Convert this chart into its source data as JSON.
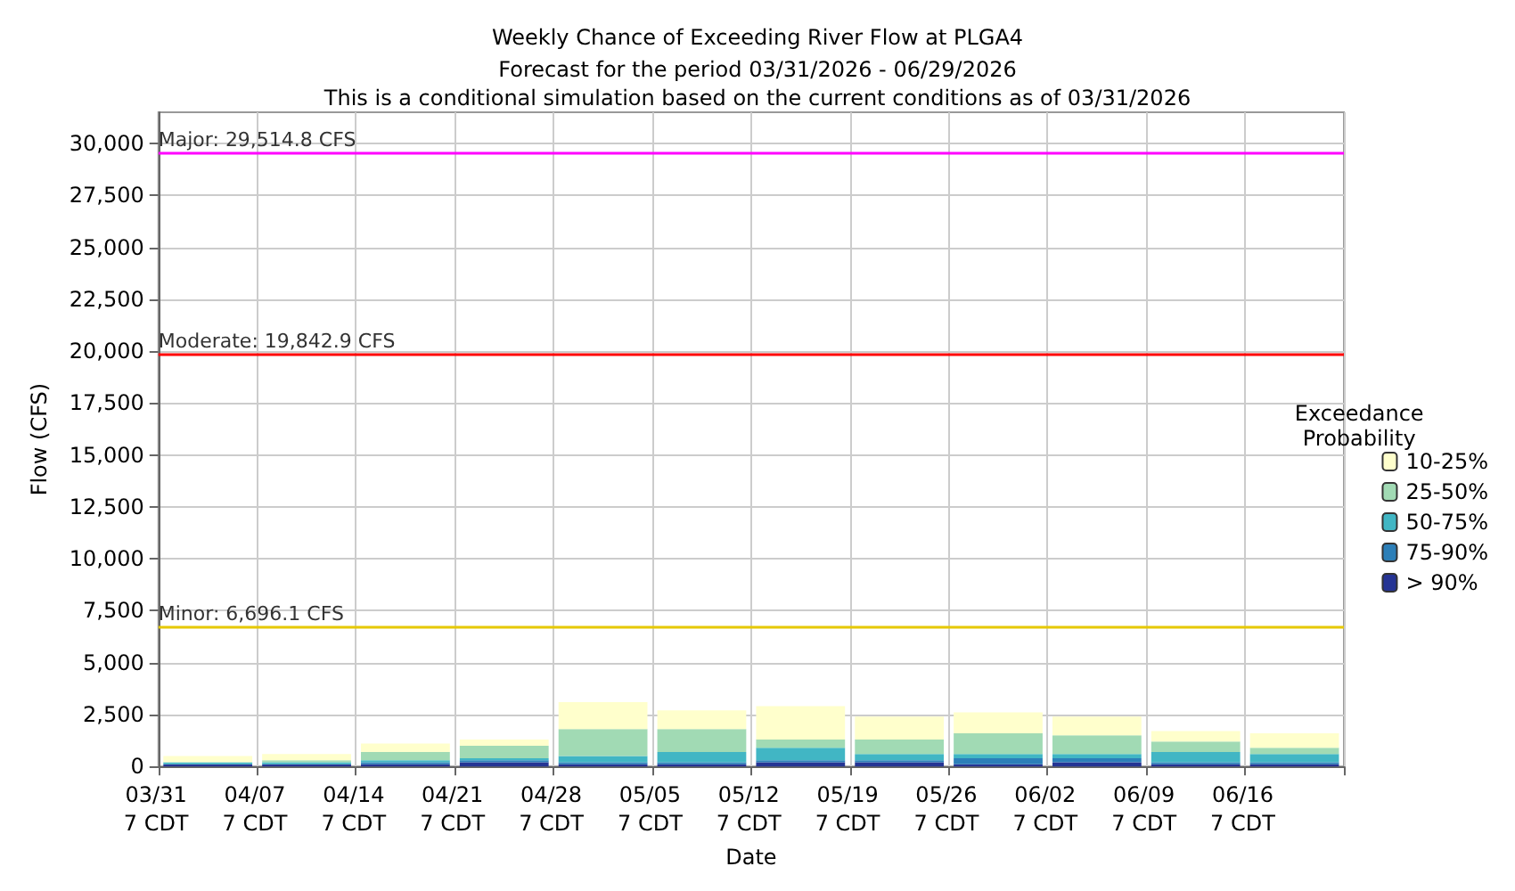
{
  "chart_data": {
    "type": "bar",
    "title": "Weekly Chance of Exceeding River Flow at PLGA4",
    "subtitle": "Forecast for the period 03/31/2026 - 06/29/2026\nThis is a conditional simulation based on the current conditions as of 03/31/2026",
    "xlabel": "Date",
    "ylabel": "Flow (CFS)",
    "legend_title": "Exceedance\nProbability",
    "categories": [
      "03/31\n7 CDT",
      "04/07\n7 CDT",
      "04/14\n7 CDT",
      "04/21\n7 CDT",
      "04/28\n7 CDT",
      "05/05\n7 CDT",
      "05/12\n7 CDT",
      "05/19\n7 CDT",
      "05/26\n7 CDT",
      "06/02\n7 CDT",
      "06/09\n7 CDT",
      "06/16\n7 CDT"
    ],
    "stacked": true,
    "series": [
      {
        "name": "> 90%",
        "color": "#253494",
        "values": [
          100,
          100,
          100,
          200,
          100,
          100,
          200,
          200,
          100,
          200,
          100,
          100
        ]
      },
      {
        "name": "75-90%",
        "color": "#2c7fb8",
        "values": [
          0,
          0,
          100,
          100,
          100,
          100,
          100,
          100,
          300,
          200,
          100,
          100
        ]
      },
      {
        "name": "50-75%",
        "color": "#41b6c4",
        "values": [
          100,
          100,
          100,
          100,
          300,
          500,
          600,
          300,
          200,
          200,
          500,
          400
        ]
      },
      {
        "name": "25-50%",
        "color": "#a1dab4",
        "values": [
          0,
          100,
          400,
          600,
          1300,
          1100,
          400,
          700,
          1000,
          900,
          500,
          300
        ]
      },
      {
        "name": "10-25%",
        "color": "#ffffcc",
        "values": [
          300,
          300,
          400,
          300,
          1300,
          900,
          1600,
          1100,
          1000,
          900,
          500,
          700
        ]
      }
    ],
    "ylim": [
      0,
      31500
    ],
    "yticks": [
      0,
      {
        "value": 2500,
        "label": "2,500"
      },
      {
        "value": 5000,
        "label": "5,000"
      },
      {
        "value": 7500,
        "label": "7,500"
      },
      {
        "value": 10000,
        "label": "10,000"
      },
      {
        "value": 12500,
        "label": "12,500"
      },
      {
        "value": 15000,
        "label": "15,000"
      },
      {
        "value": 17500,
        "label": "17,500"
      },
      {
        "value": 20000,
        "label": "20,000"
      },
      {
        "value": 22500,
        "label": "22,500"
      },
      {
        "value": 25000,
        "label": "25,000"
      },
      {
        "value": 27500,
        "label": "27,500"
      },
      {
        "value": 30000,
        "label": "30,000"
      }
    ],
    "ref_lines": [
      {
        "axis": "y",
        "value": 29514.8,
        "label": "Major: 29,514.8 CFS",
        "color": "#ff00ff"
      },
      {
        "axis": "y",
        "value": 19842.9,
        "label": "Moderate: 19,842.9 CFS",
        "color": "#ff0000"
      },
      {
        "axis": "y",
        "value": 6696.1,
        "label": "Minor: 6,696.1 CFS",
        "color": "#e6c800"
      }
    ],
    "grid": true,
    "legend": "right"
  }
}
